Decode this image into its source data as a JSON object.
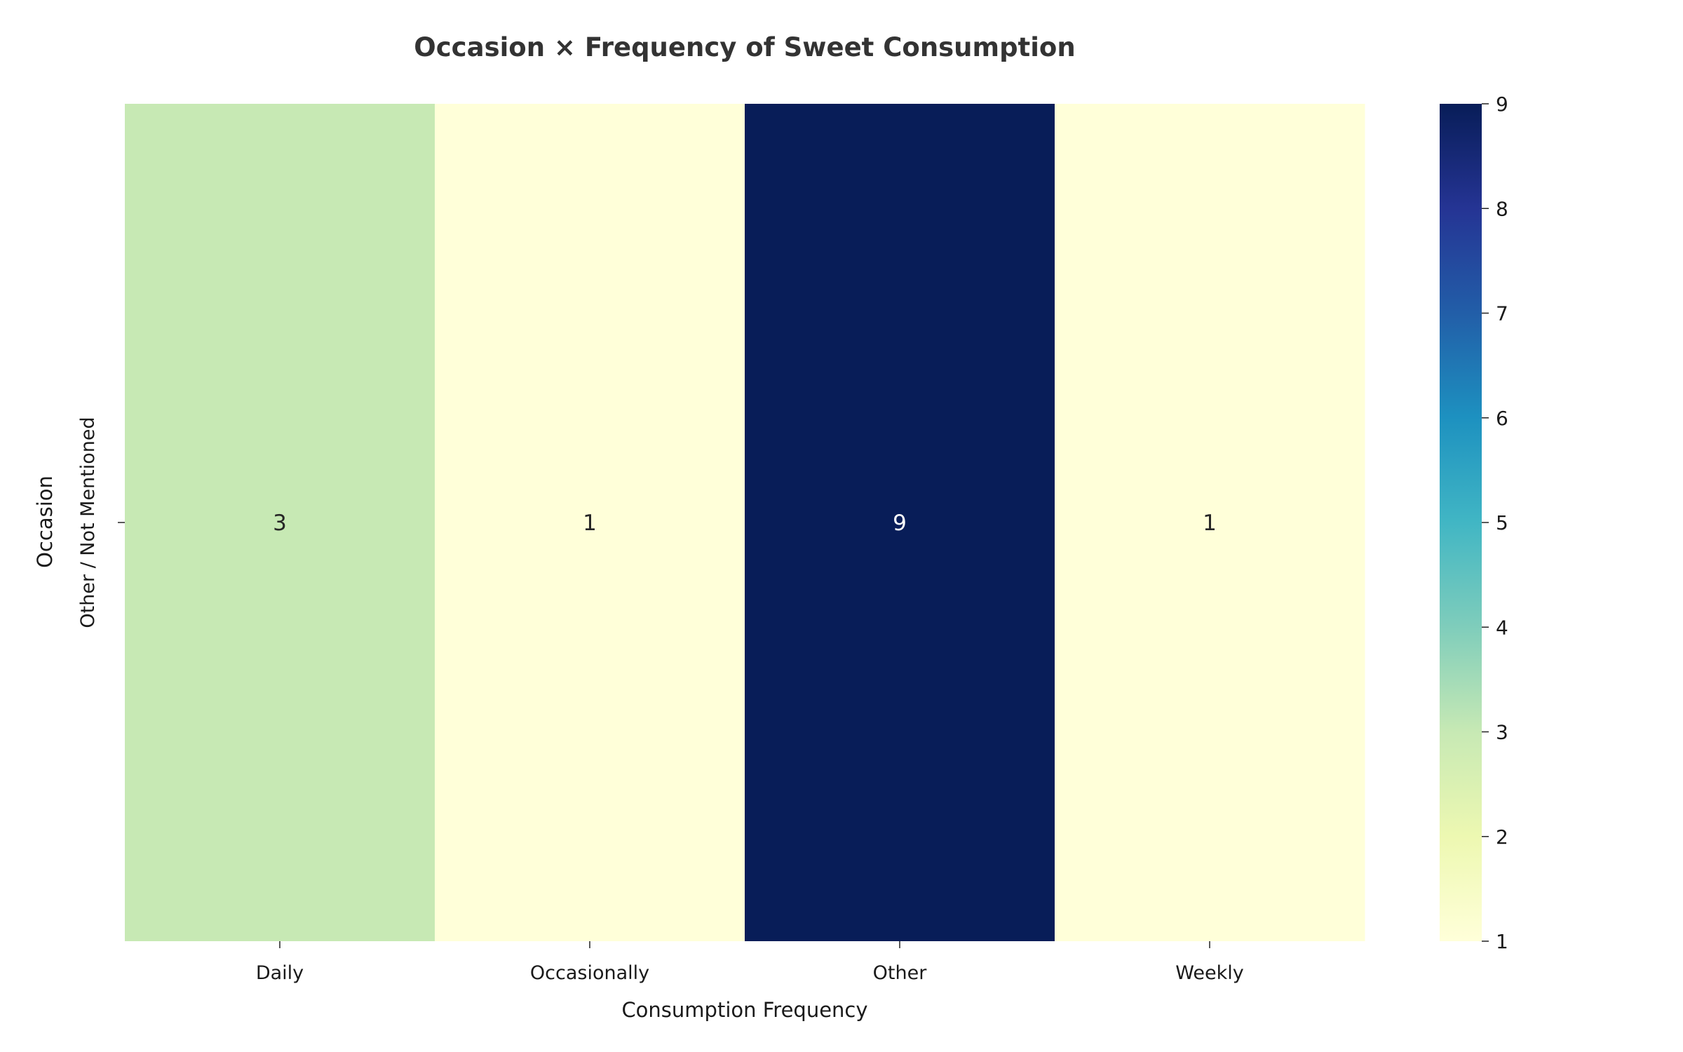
{
  "chart_data": {
    "type": "heatmap",
    "title": "Occasion × Frequency of Sweet Consumption",
    "xlabel": "Consumption Frequency",
    "ylabel": "Occasion",
    "x_categories": [
      "Daily",
      "Occasionally",
      "Other",
      "Weekly"
    ],
    "y_categories": [
      "Other / Not Mentioned"
    ],
    "values": [
      [
        3,
        1,
        9,
        1
      ]
    ],
    "colormap": "YlGnBu",
    "colorbar": {
      "min": 1,
      "max": 9,
      "ticks": [
        "1",
        "2",
        "3",
        "4",
        "5",
        "6",
        "7",
        "8",
        "9"
      ]
    },
    "annotations": true,
    "colors": {
      "low": "#ffffd9",
      "high": "#081d58"
    }
  }
}
